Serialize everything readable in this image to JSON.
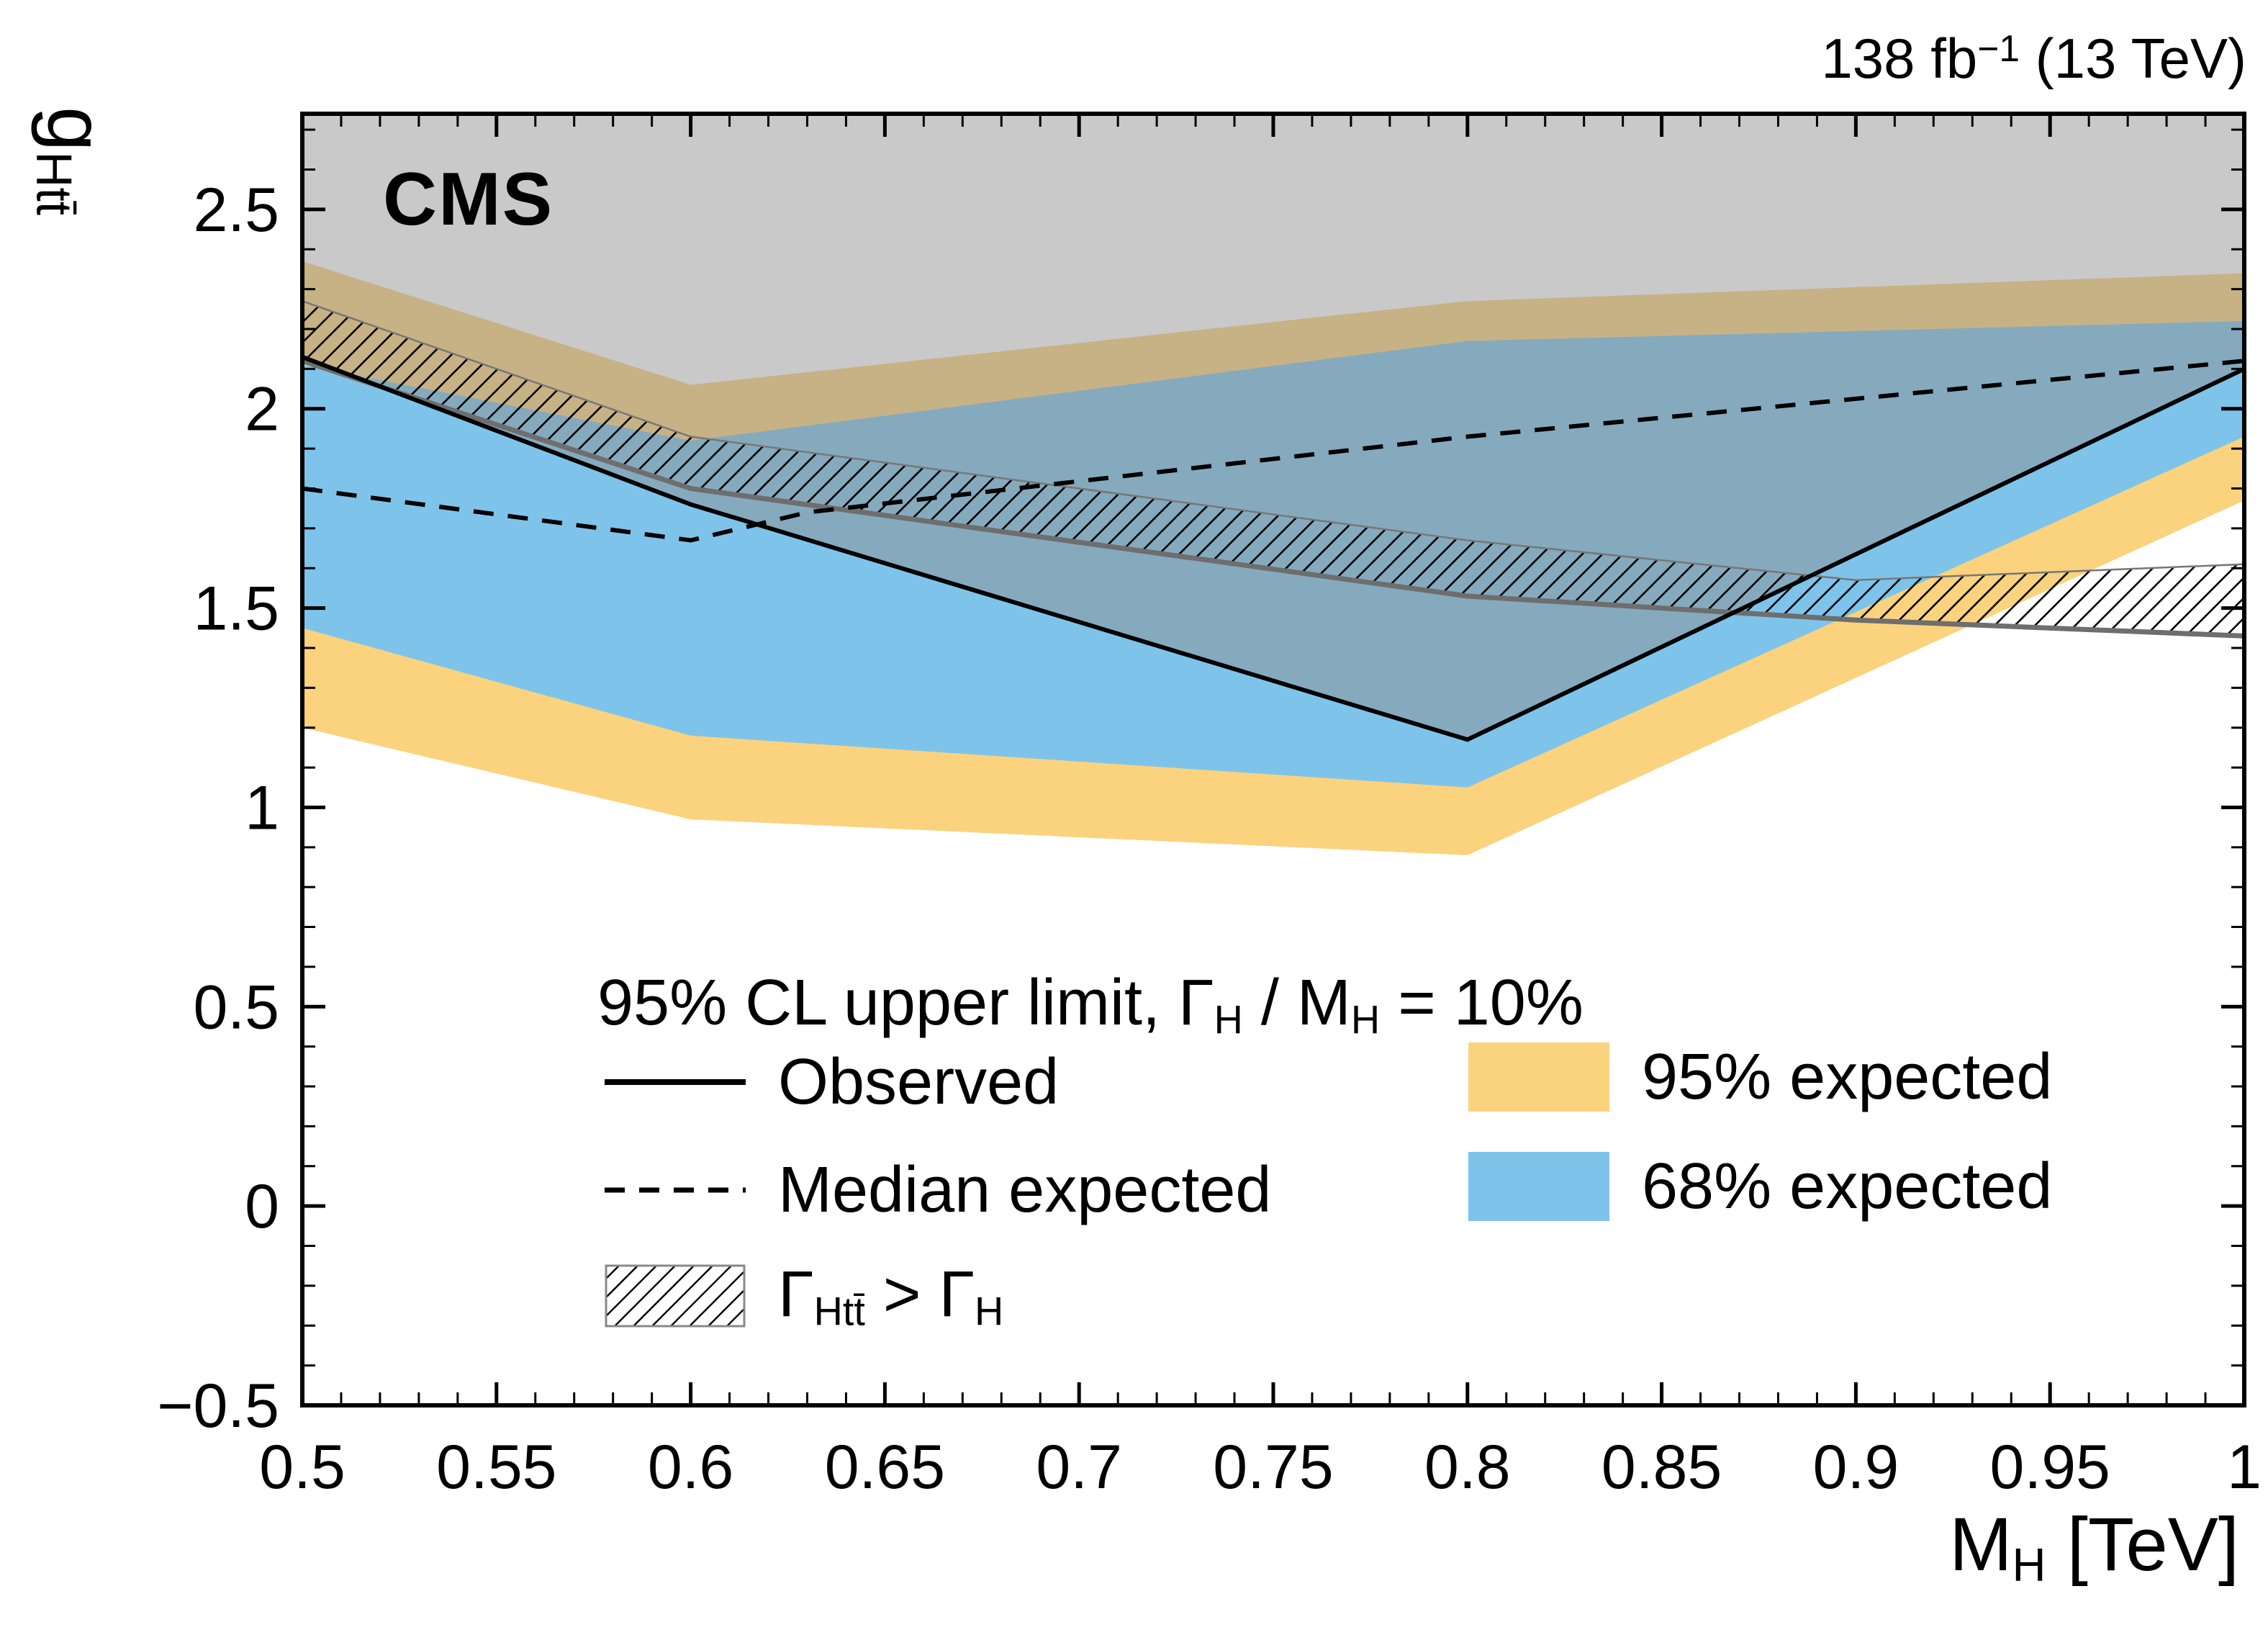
{
  "text": {
    "cms": "CMS",
    "lumi": {
      "main": "138 fb",
      "sup": "−1",
      "rest": " (13 TeV)"
    },
    "y_title": {
      "main": "g",
      "sub": "Htt̄"
    },
    "x_title": {
      "main": "M",
      "sub": "H",
      "rest": " [TeV]"
    },
    "legend": {
      "title": {
        "p1": "95% CL upper limit, ",
        "p2": "Γ",
        "p3": "H",
        "p4": " / M",
        "p5": "H",
        "p6": " = 10%"
      },
      "observed": "Observed",
      "median": "Median expected",
      "band95": "95% expected",
      "band68": "68% expected",
      "hatch": {
        "p1": "Γ",
        "p2": "Htt̄",
        "p3": " > Γ",
        "p4": "H"
      }
    }
  },
  "colors": {
    "band68": "#7EC4EA",
    "band95": "#FBD37E",
    "overlay": "#8F8F8F",
    "constraint": "#6E6E6E",
    "frame": "#000000"
  },
  "chart_data": {
    "type": "line",
    "title": "95% CL upper limit, Γ_H / M_H = 10%",
    "xlabel": "M_H [TeV]",
    "ylabel": "g_Htt̄",
    "xlim": [
      0.5,
      1.0
    ],
    "ylim": [
      -0.5,
      2.74
    ],
    "grid": false,
    "legend_position": "bottom-center",
    "annotations": [
      "CMS",
      "138 fb⁻¹ (13 TeV)"
    ],
    "legend_entries": [
      "Observed",
      "Median expected",
      "95% expected",
      "68% expected",
      "Γ_Htt̄ > Γ_H"
    ],
    "x_ticks": {
      "values": [
        0.5,
        0.55,
        0.6,
        0.65,
        0.7,
        0.75,
        0.8,
        0.85,
        0.9,
        0.95,
        1.0
      ],
      "labels": [
        "0.5",
        "0.55",
        "0.6",
        "0.65",
        "0.7",
        "0.75",
        "0.8",
        "0.85",
        "0.9",
        "0.95",
        "1"
      ]
    },
    "y_ticks": {
      "values": [
        -0.5,
        0,
        0.5,
        1,
        1.5,
        2,
        2.5
      ],
      "labels": [
        "−0.5",
        "0",
        "0.5",
        "1",
        "1.5",
        "2",
        "2.5"
      ]
    },
    "minor": {
      "x_step": 0.01,
      "y_step": 0.1
    },
    "series": [
      {
        "id": "band95",
        "name": "95% expected band",
        "kind": "band",
        "x": [
          0.5,
          0.6,
          0.8,
          1.0
        ],
        "lower": [
          1.2,
          0.97,
          0.88,
          1.77
        ],
        "upper": [
          2.37,
          2.06,
          2.27,
          2.34
        ]
      },
      {
        "id": "band68",
        "name": "68% expected band",
        "kind": "band",
        "x": [
          0.5,
          0.6,
          0.8,
          1.0
        ],
        "lower": [
          1.45,
          1.18,
          1.05,
          1.93
        ],
        "upper": [
          2.11,
          1.92,
          2.17,
          2.22
        ]
      },
      {
        "id": "observed",
        "name": "Observed",
        "kind": "line",
        "style": "solid-black",
        "x": [
          0.5,
          0.6,
          0.8,
          1.0
        ],
        "y": [
          2.13,
          1.76,
          1.17,
          2.1
        ]
      },
      {
        "id": "median",
        "name": "Median expected",
        "kind": "line",
        "style": "dashed-black",
        "x": [
          0.5,
          0.6,
          0.63,
          0.8,
          1.0
        ],
        "y": [
          1.8,
          1.67,
          1.74,
          1.93,
          2.12
        ]
      },
      {
        "id": "constraint",
        "name": "Gamma_Htt > Gamma_H region",
        "kind": "hatched-band",
        "x": [
          0.5,
          0.6,
          0.8,
          0.9,
          1.0
        ],
        "lower": [
          2.12,
          1.8,
          1.53,
          1.47,
          1.43
        ],
        "upper": [
          2.27,
          1.93,
          1.67,
          1.57,
          1.61
        ]
      },
      {
        "id": "excluded",
        "name": "Excluded region above observed limit",
        "kind": "overlay"
      }
    ]
  }
}
